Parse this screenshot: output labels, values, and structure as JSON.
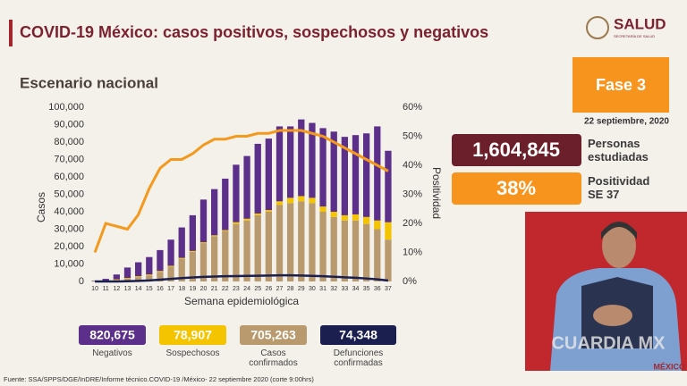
{
  "header": {
    "title": "COVID-19 México: casos positivos, sospechosos y negativos",
    "subtitle": "Escenario nacional",
    "logo": "SALUD",
    "logo_sub": "SECRETARÍA DE SALUD"
  },
  "chart_data": {
    "type": "bar",
    "stacked": true,
    "x_label": "Semana epidemiológica",
    "y_label": "Casos",
    "y2_label": "Positividad",
    "categories": [
      "10",
      "11",
      "12",
      "13",
      "14",
      "15",
      "16",
      "17",
      "18",
      "19",
      "20",
      "21",
      "22",
      "23",
      "24",
      "25",
      "26",
      "27",
      "28",
      "29",
      "30",
      "31",
      "32",
      "33",
      "34",
      "35",
      "36",
      "37"
    ],
    "ylim": [
      0,
      100000
    ],
    "yticks": [
      0,
      {
        "value": 10000,
        "label": "10,000"
      },
      {
        "value": 20000,
        "label": "20,000"
      },
      {
        "value": 30000,
        "label": "30,000"
      },
      {
        "value": 40000,
        "label": "40,000"
      },
      {
        "value": 50000,
        "label": "50,000"
      },
      {
        "value": 60000,
        "label": "60,000"
      },
      {
        "value": 70000,
        "label": "70,000"
      },
      {
        "value": 80000,
        "label": "80,000"
      },
      {
        "value": 90000,
        "label": "90,000"
      },
      {
        "value": 100000,
        "label": "100,000"
      }
    ],
    "y2lim": [
      0,
      60
    ],
    "y2ticks": [
      {
        "value": 0,
        "label": "0%"
      },
      {
        "value": 10,
        "label": "10%"
      },
      {
        "value": 20,
        "label": "20%"
      },
      {
        "value": 30,
        "label": "30%"
      },
      {
        "value": 40,
        "label": "40%"
      },
      {
        "value": 50,
        "label": "50%"
      },
      {
        "value": 60,
        "label": "60%"
      }
    ],
    "series": [
      {
        "name": "Negativos",
        "color": "#5b2f8a",
        "total": {
          "value": 820675,
          "label": "820,675"
        },
        "values": [
          300,
          1000,
          2800,
          6000,
          8000,
          10000,
          12000,
          15000,
          17500,
          20500,
          24500,
          26500,
          29500,
          33000,
          36000,
          40000,
          41000,
          43000,
          41000,
          44000,
          43000,
          45000,
          46000,
          45000,
          45500,
          48000,
          54000,
          41000
        ]
      },
      {
        "name": "Sospechosos",
        "color": "#f5c400",
        "total": {
          "value": 78907,
          "label": "78,907"
        },
        "values": [
          100,
          200,
          400,
          500,
          500,
          500,
          500,
          500,
          500,
          500,
          500,
          500,
          500,
          1000,
          1000,
          1000,
          1000,
          2000,
          3000,
          3000,
          3000,
          3000,
          3000,
          3000,
          3500,
          4000,
          5000,
          10000
        ]
      },
      {
        "name": "Casos confirmados",
        "color": "#b89a6e",
        "total": {
          "value": 705263,
          "label": "705,263"
        },
        "values": [
          100,
          300,
          800,
          1500,
          2500,
          3500,
          5500,
          8500,
          13000,
          17000,
          22000,
          26000,
          29000,
          33000,
          35000,
          38000,
          40000,
          44000,
          45000,
          46000,
          45000,
          40000,
          37000,
          35000,
          35000,
          33000,
          30000,
          24000
        ]
      },
      {
        "name": "Defunciones confirmadas",
        "type": "line",
        "color": "#1a1f4f",
        "total": {
          "value": 74348,
          "label": "74,348"
        },
        "values": [
          0,
          0,
          20,
          100,
          300,
          600,
          1000,
          1500,
          1900,
          2300,
          2600,
          2800,
          3000,
          3100,
          3200,
          3300,
          3400,
          3500,
          3500,
          3400,
          3200,
          3000,
          2700,
          2400,
          2100,
          1700,
          1200,
          500
        ]
      },
      {
        "type": "line",
        "axis": "y2",
        "color": "#f39a1e",
        "values": [
          10,
          20,
          19,
          18,
          23,
          32,
          39,
          42,
          42,
          44,
          47,
          49,
          49,
          50,
          50,
          51,
          51,
          52,
          52,
          52,
          51,
          50,
          48,
          46,
          44,
          42,
          40,
          38
        ]
      }
    ]
  },
  "panel": {
    "phase": "Fase 3",
    "date": "22 septiembre, 2020",
    "stats": [
      {
        "value": 1604845,
        "label": "1,604,845",
        "caption": "Personas estudiadas"
      },
      {
        "value": 38,
        "label": "38%",
        "caption": "Positividad SE 37"
      }
    ]
  },
  "watermark": "CUARDIA MX",
  "footer_badge": "MÉXICO",
  "source": "Fuente: SSA/SPPS/DGE/InDRE/Informe técnico.COVID-19 /México- 22 septiembre 2020 (corte 9:00hrs)"
}
